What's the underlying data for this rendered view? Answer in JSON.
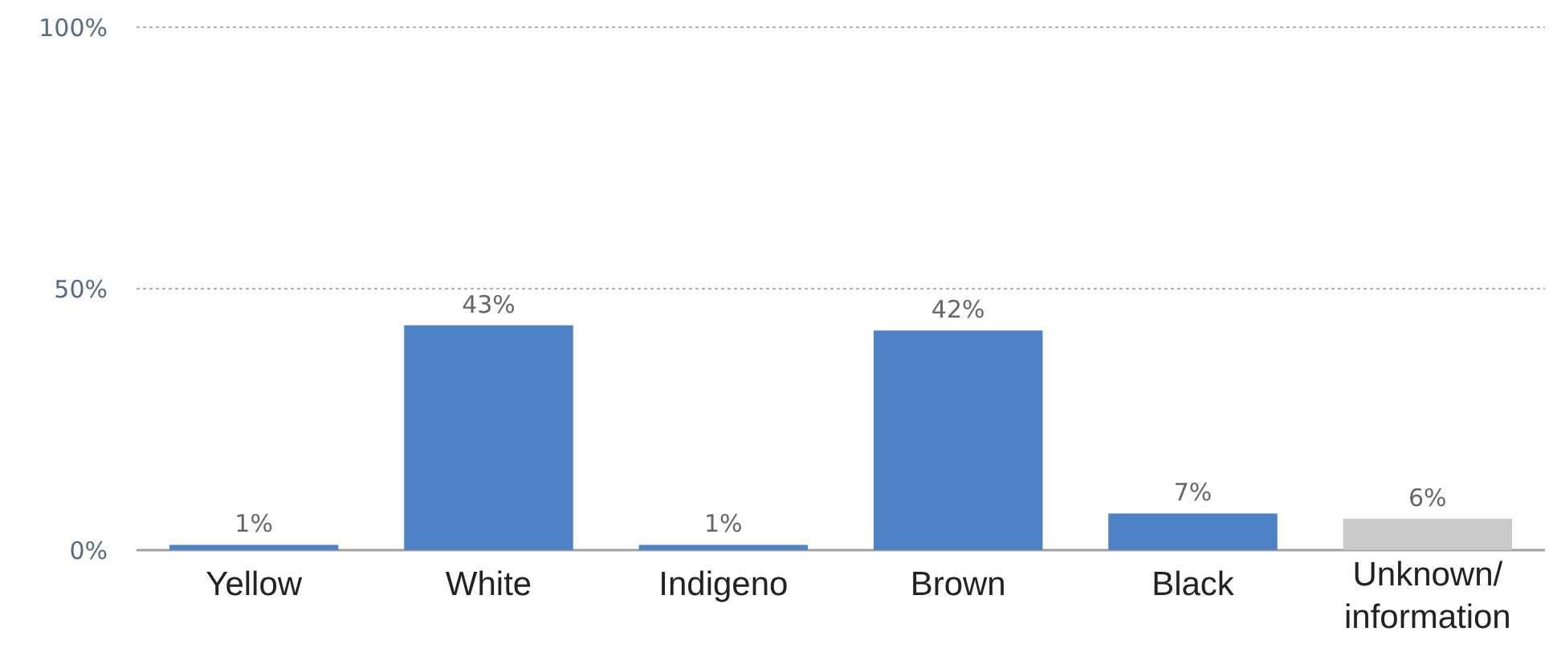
{
  "chart_data": {
    "type": "bar",
    "categories": [
      "Yellow",
      "White",
      "Indigeno",
      "Brown",
      "Black",
      "Unknown/ information"
    ],
    "values": [
      1,
      43,
      1,
      42,
      7,
      6
    ],
    "colors": [
      "#4f81c7",
      "#4f81c7",
      "#4f81c7",
      "#4f81c7",
      "#4f81c7",
      "#c9c9c9"
    ],
    "value_labels": [
      "1%",
      "43%",
      "1%",
      "42%",
      "7%",
      "6%"
    ],
    "ylim": [
      0,
      100
    ],
    "yticks": [
      {
        "value": 0,
        "label": "0%"
      },
      {
        "value": 50,
        "label": "50%"
      },
      {
        "value": 100,
        "label": "100%"
      }
    ],
    "grid": "y"
  }
}
